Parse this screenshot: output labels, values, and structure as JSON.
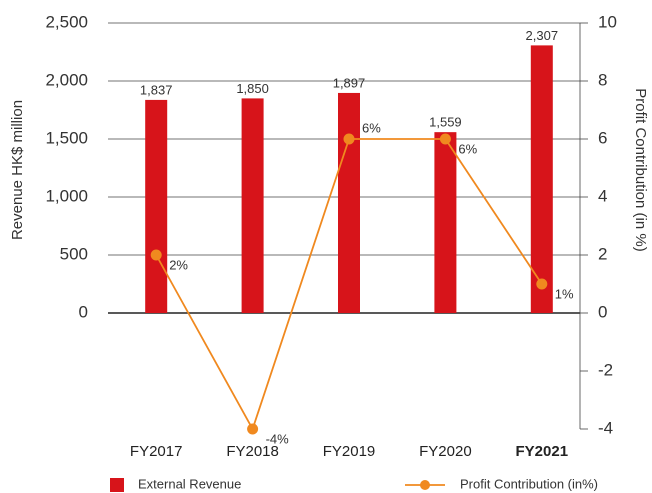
{
  "chart_data": {
    "type": "bar-line",
    "categories": [
      "FY2017",
      "FY2018",
      "FY2019",
      "FY2020",
      "FY2021"
    ],
    "highlight_index": 4,
    "ylabel": "Revenue HK$ million",
    "y2label": "Profit Contribution (in %)",
    "ylim": [
      -1000,
      2500
    ],
    "yticks": [
      {
        "value": 0,
        "label": "0"
      },
      {
        "value": 500,
        "label": "500"
      },
      {
        "value": 1000,
        "label": "1,000"
      },
      {
        "value": 1500,
        "label": "1,500"
      },
      {
        "value": 2000,
        "label": "2,000"
      },
      {
        "value": 2500,
        "label": "2,500"
      }
    ],
    "y2lim": [
      -4,
      10
    ],
    "y2ticks": [
      -4,
      -2,
      0,
      2,
      4,
      6,
      8,
      10
    ],
    "grid": true,
    "series": [
      {
        "name": "External Revenue",
        "type": "bar",
        "color": "#d7141a",
        "values": [
          1837,
          1850,
          1897,
          1559,
          2307
        ],
        "value_labels": [
          "1,837",
          "1,850",
          "1,897",
          "1,559",
          "2,307"
        ]
      },
      {
        "name": "Profit Contribution (in%)",
        "type": "line",
        "axis": "y2",
        "color": "#f0891f",
        "values": [
          2,
          -4,
          6,
          6,
          1
        ],
        "value_labels": [
          "2%",
          "-4%",
          "6%",
          "6%",
          "1%"
        ]
      }
    ]
  }
}
